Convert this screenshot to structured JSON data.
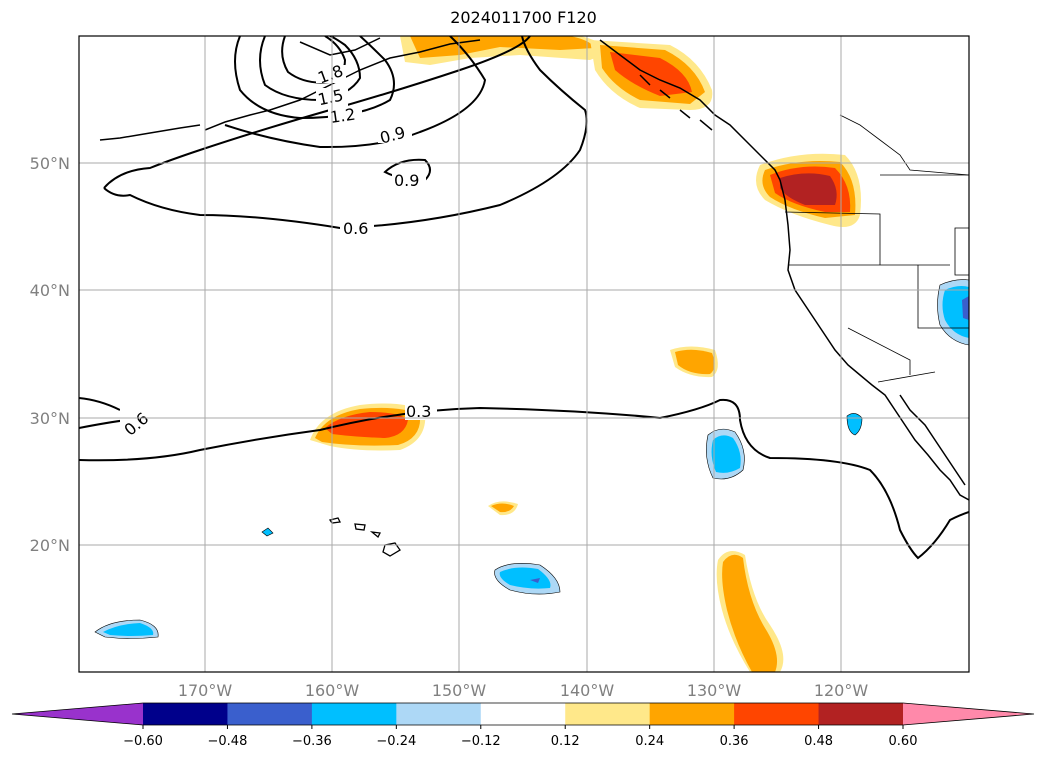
{
  "title": "2024011700 F120",
  "lat_labels": [
    "50°N",
    "40°N",
    "30°N",
    "20°N"
  ],
  "lon_labels": [
    "170°W",
    "160°W",
    "150°W",
    "140°W",
    "130°W",
    "120°W"
  ],
  "contour_labels": [
    "1.8",
    "1.5",
    "1.2",
    "0.9",
    "0.9",
    "0.6",
    "0.3",
    "0.6"
  ],
  "colorbar": {
    "ticks": [
      "−0.60",
      "−0.48",
      "−0.36",
      "−0.24",
      "−0.12",
      "0.12",
      "0.24",
      "0.36",
      "0.48",
      "0.60"
    ],
    "colors": [
      "#9932cc",
      "#00008b",
      "#3a5fcd",
      "#00bfff",
      "#add8f6",
      "#ffffff",
      "#ffe88a",
      "#ffa500",
      "#ff4500",
      "#b22222",
      "#ff89aa"
    ]
  }
}
